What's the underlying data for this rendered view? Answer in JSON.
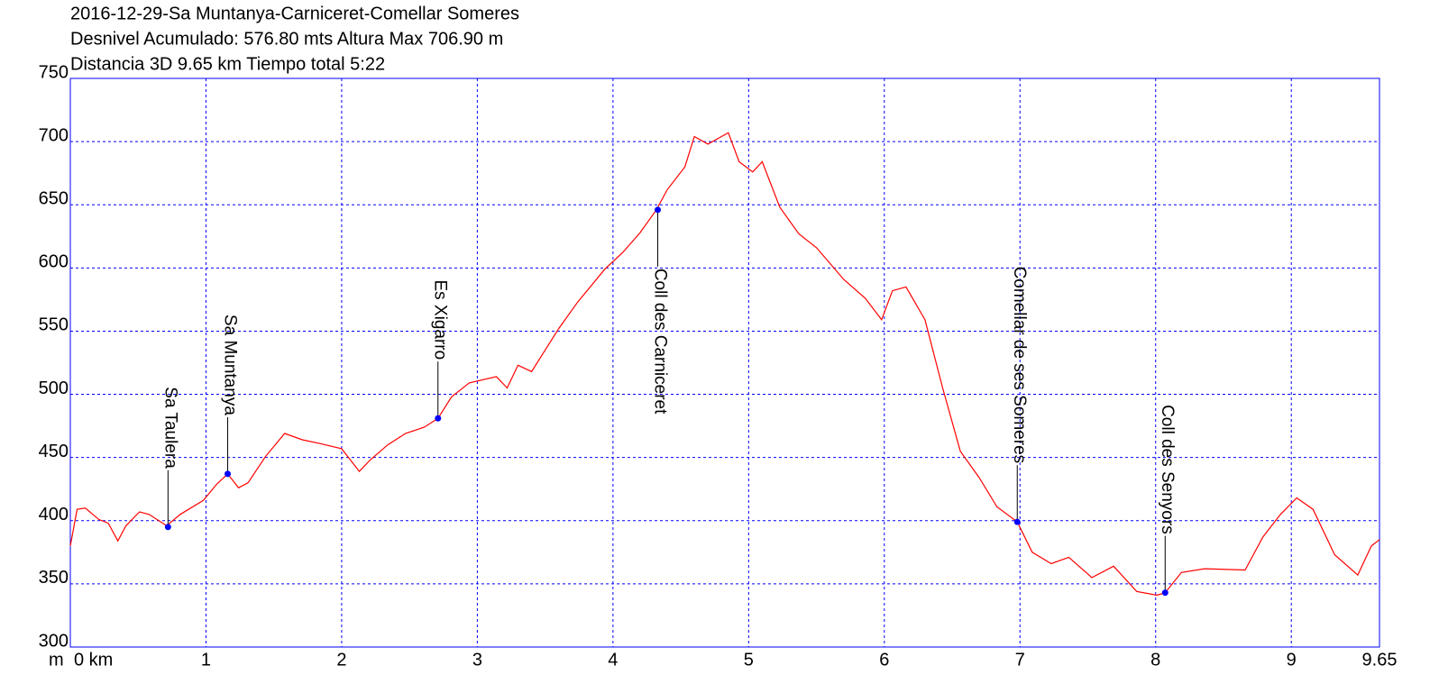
{
  "chart_data": {
    "type": "line",
    "title": "2016-12-29-Sa Muntanya-Carniceret-Comellar Someres",
    "subtitle": "Desnivel Acumulado: 576.80 mts  Altura Max 706.90 m",
    "subtitle2": "Distancia 3D 9.65 km  Tiempo total 5:22",
    "y_label": "m",
    "xlim": [
      0,
      9.65
    ],
    "ylim": [
      300,
      750
    ],
    "xticks": [
      {
        "value": 0,
        "label": "0 km"
      },
      1,
      2,
      3,
      4,
      5,
      6,
      7,
      8,
      9,
      9.65
    ],
    "yticks": [
      300,
      350,
      400,
      450,
      500,
      550,
      600,
      650,
      700,
      750
    ],
    "grid": true,
    "x": [
      0,
      0.05,
      0.11,
      0.21,
      0.28,
      0.35,
      0.41,
      0.51,
      0.58,
      0.71,
      0.81,
      0.98,
      1.08,
      1.16,
      1.24,
      1.31,
      1.44,
      1.58,
      1.71,
      1.84,
      2.0,
      2.13,
      2.21,
      2.34,
      2.47,
      2.61,
      2.71,
      2.81,
      2.94,
      3.14,
      3.22,
      3.3,
      3.4,
      3.6,
      3.74,
      3.94,
      4.07,
      4.2,
      4.32,
      4.4,
      4.53,
      4.6,
      4.7,
      4.8,
      4.85,
      4.93,
      5.03,
      5.1,
      5.23,
      5.37,
      5.5,
      5.7,
      5.86,
      5.98,
      6.06,
      6.16,
      6.3,
      6.43,
      6.56,
      6.7,
      6.83,
      6.98,
      7.09,
      7.23,
      7.36,
      7.53,
      7.69,
      7.86,
      8.01,
      8.07,
      8.19,
      8.36,
      8.66,
      8.79,
      8.92,
      9.04,
      9.16,
      9.32,
      9.49,
      9.59,
      9.65
    ],
    "series": [
      {
        "color": "#ff0000",
        "values": [
          380,
          409,
          410,
          401,
          398,
          384,
          396,
          407,
          405,
          396,
          405,
          416,
          429,
          437,
          426,
          430,
          451,
          469,
          464,
          461,
          457,
          439,
          448,
          460,
          469,
          474,
          481,
          498,
          509,
          514,
          505,
          523,
          518,
          552,
          573,
          599,
          612,
          628,
          646,
          662,
          680,
          704,
          698,
          704,
          707,
          684,
          676,
          684,
          648,
          627,
          616,
          591,
          576,
          559,
          582,
          585,
          559,
          505,
          455,
          434,
          411,
          399,
          375,
          366,
          371,
          355,
          364,
          344,
          341,
          343,
          359,
          362,
          361,
          387,
          405,
          418,
          409,
          373,
          357,
          380,
          385
        ]
      }
    ],
    "waypoint_color": "#0000ff",
    "waypoints": [
      {
        "name": "Sa Taulera",
        "x": 0.72,
        "y": 395
      },
      {
        "name": "Sa Muntanya",
        "x": 1.16,
        "y": 437
      },
      {
        "name": "Es Xigarro",
        "x": 2.71,
        "y": 481
      },
      {
        "name": "Coll des Carniceret",
        "x": 4.33,
        "y": 646
      },
      {
        "name": "Comellar de ses Someres",
        "x": 6.98,
        "y": 399
      },
      {
        "name": "Coll des Senyors",
        "x": 8.07,
        "y": 343
      }
    ]
  }
}
